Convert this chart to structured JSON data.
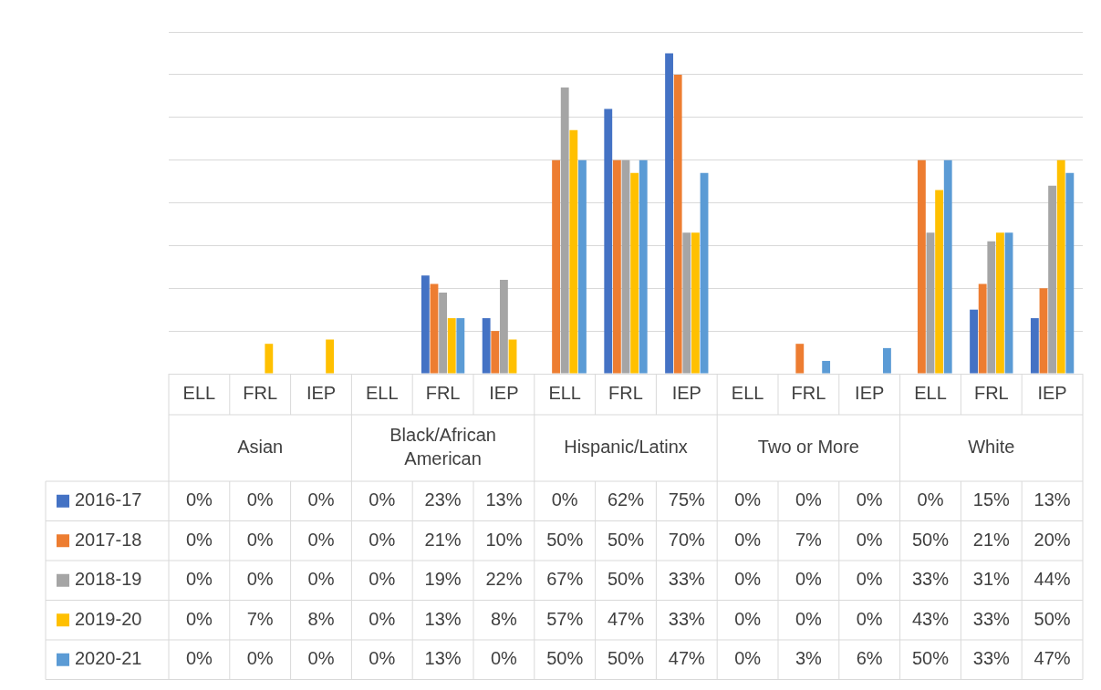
{
  "chart_data": {
    "type": "bar",
    "categories": [
      "ELL",
      "FRL",
      "IEP",
      "ELL",
      "FRL",
      "IEP",
      "ELL",
      "FRL",
      "IEP",
      "ELL",
      "FRL",
      "IEP",
      "ELL",
      "FRL",
      "IEP"
    ],
    "annotations": [
      "Asian",
      "Black/African American",
      "Hispanic/Latinx",
      "Two or More",
      "White"
    ],
    "series": [
      {
        "name": "2016-17",
        "color": "#4472c4",
        "values": [
          0,
          0,
          0,
          0,
          23,
          13,
          0,
          62,
          75,
          0,
          0,
          0,
          0,
          15,
          13
        ],
        "value_labels": [
          "0%",
          "0%",
          "0%",
          "0%",
          "23%",
          "13%",
          "0%",
          "62%",
          "75%",
          "0%",
          "0%",
          "0%",
          "0%",
          "15%",
          "13%"
        ]
      },
      {
        "name": "2017-18",
        "color": "#ed7d31",
        "values": [
          0,
          0,
          0,
          0,
          21,
          10,
          50,
          50,
          70,
          0,
          7,
          0,
          50,
          21,
          20
        ],
        "value_labels": [
          "0%",
          "0%",
          "0%",
          "0%",
          "21%",
          "10%",
          "50%",
          "50%",
          "70%",
          "0%",
          "7%",
          "0%",
          "50%",
          "21%",
          "20%"
        ]
      },
      {
        "name": "2018-19",
        "color": "#a5a5a5",
        "values": [
          0,
          0,
          0,
          0,
          19,
          22,
          67,
          50,
          33,
          0,
          0,
          0,
          33,
          31,
          44
        ],
        "value_labels": [
          "0%",
          "0%",
          "0%",
          "0%",
          "19%",
          "22%",
          "67%",
          "50%",
          "33%",
          "0%",
          "0%",
          "0%",
          "33%",
          "31%",
          "44%"
        ]
      },
      {
        "name": "2019-20",
        "color": "#ffc000",
        "values": [
          0,
          7,
          8,
          0,
          13,
          8,
          57,
          47,
          33,
          0,
          0,
          0,
          43,
          33,
          50
        ],
        "value_labels": [
          "0%",
          "7%",
          "8%",
          "0%",
          "13%",
          "8%",
          "57%",
          "47%",
          "33%",
          "0%",
          "0%",
          "0%",
          "43%",
          "33%",
          "50%"
        ]
      },
      {
        "name": "2020-21",
        "color": "#5b9bd5",
        "values": [
          0,
          0,
          0,
          0,
          13,
          0,
          50,
          50,
          47,
          0,
          3,
          6,
          50,
          33,
          47
        ],
        "value_labels": [
          "0%",
          "0%",
          "0%",
          "0%",
          "13%",
          "0%",
          "50%",
          "50%",
          "47%",
          "0%",
          "3%",
          "6%",
          "50%",
          "33%",
          "47%"
        ]
      }
    ],
    "ylim": [
      0,
      80
    ],
    "yticks": [
      {
        "value": 0,
        "label": null
      },
      {
        "value": 10,
        "label": null
      },
      {
        "value": 20,
        "label": null
      },
      {
        "value": 30,
        "label": null
      },
      {
        "value": 40,
        "label": null
      },
      {
        "value": 50,
        "label": null
      },
      {
        "value": 60,
        "label": null
      },
      {
        "value": 70,
        "label": null
      },
      {
        "value": 80,
        "label": null
      }
    ],
    "grid": "y",
    "tick_labels": "x",
    "legend": "bottom"
  }
}
